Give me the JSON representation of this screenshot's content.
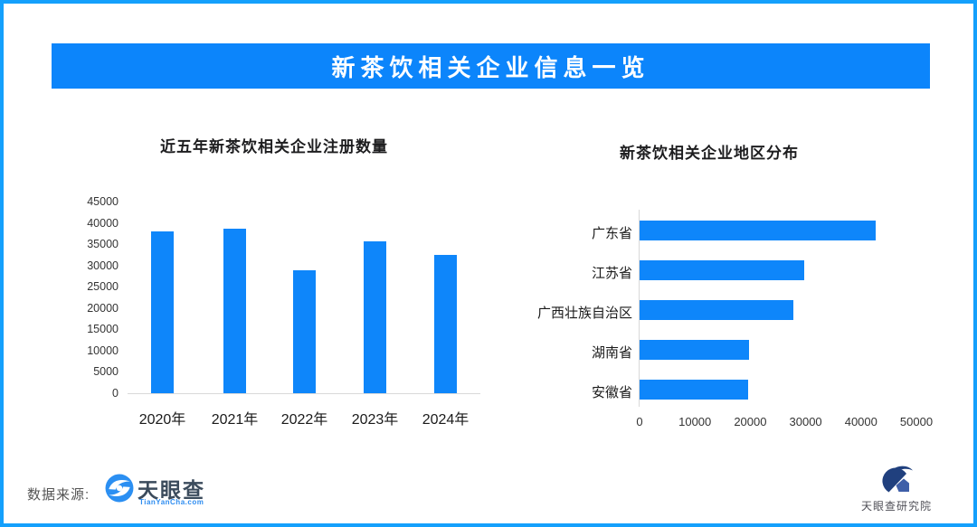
{
  "page": {
    "title": "新茶饮相关企业信息一览",
    "source": {
      "label": "数据来源:",
      "brand_name": "天眼查",
      "brand_domain": "TianYanCha.com"
    },
    "institute_name": "天眼查研究院"
  },
  "colors": {
    "bar_blue": "#0e86fa",
    "banner_blue": "#0c85fb",
    "page_border_blue": "#14a0fc",
    "axis_gray": "#d9d9d9",
    "logo_navy": "#20407e",
    "logo_light_blue": "#3f5fa8",
    "brand_text": "#3b4b5c",
    "brand_domain_blue": "#2d8cf0"
  },
  "chart_data": [
    {
      "type": "bar",
      "title": "近五年新茶饮相关企业注册数量",
      "categories": [
        "2020年",
        "2021年",
        "2022年",
        "2023年",
        "2024年"
      ],
      "values": [
        38200,
        38800,
        29100,
        35900,
        32700
      ],
      "xlabel": "",
      "ylabel": "",
      "ylim": [
        0,
        45000
      ],
      "yticks": [
        0,
        5000,
        10000,
        15000,
        20000,
        25000,
        30000,
        35000,
        40000,
        45000
      ],
      "grid": false,
      "legend": false
    },
    {
      "type": "bar-horizontal",
      "title": "新茶饮相关企业地区分布",
      "categories": [
        "广东省",
        "江苏省",
        "广西壮族自治区",
        "湖南省",
        "安徽省"
      ],
      "values": [
        42600,
        29700,
        27700,
        19800,
        19600
      ],
      "xlabel": "",
      "ylabel": "",
      "xlim": [
        0,
        50000
      ],
      "xticks": [
        0,
        10000,
        20000,
        30000,
        40000,
        50000
      ],
      "grid": false,
      "legend": false
    }
  ]
}
